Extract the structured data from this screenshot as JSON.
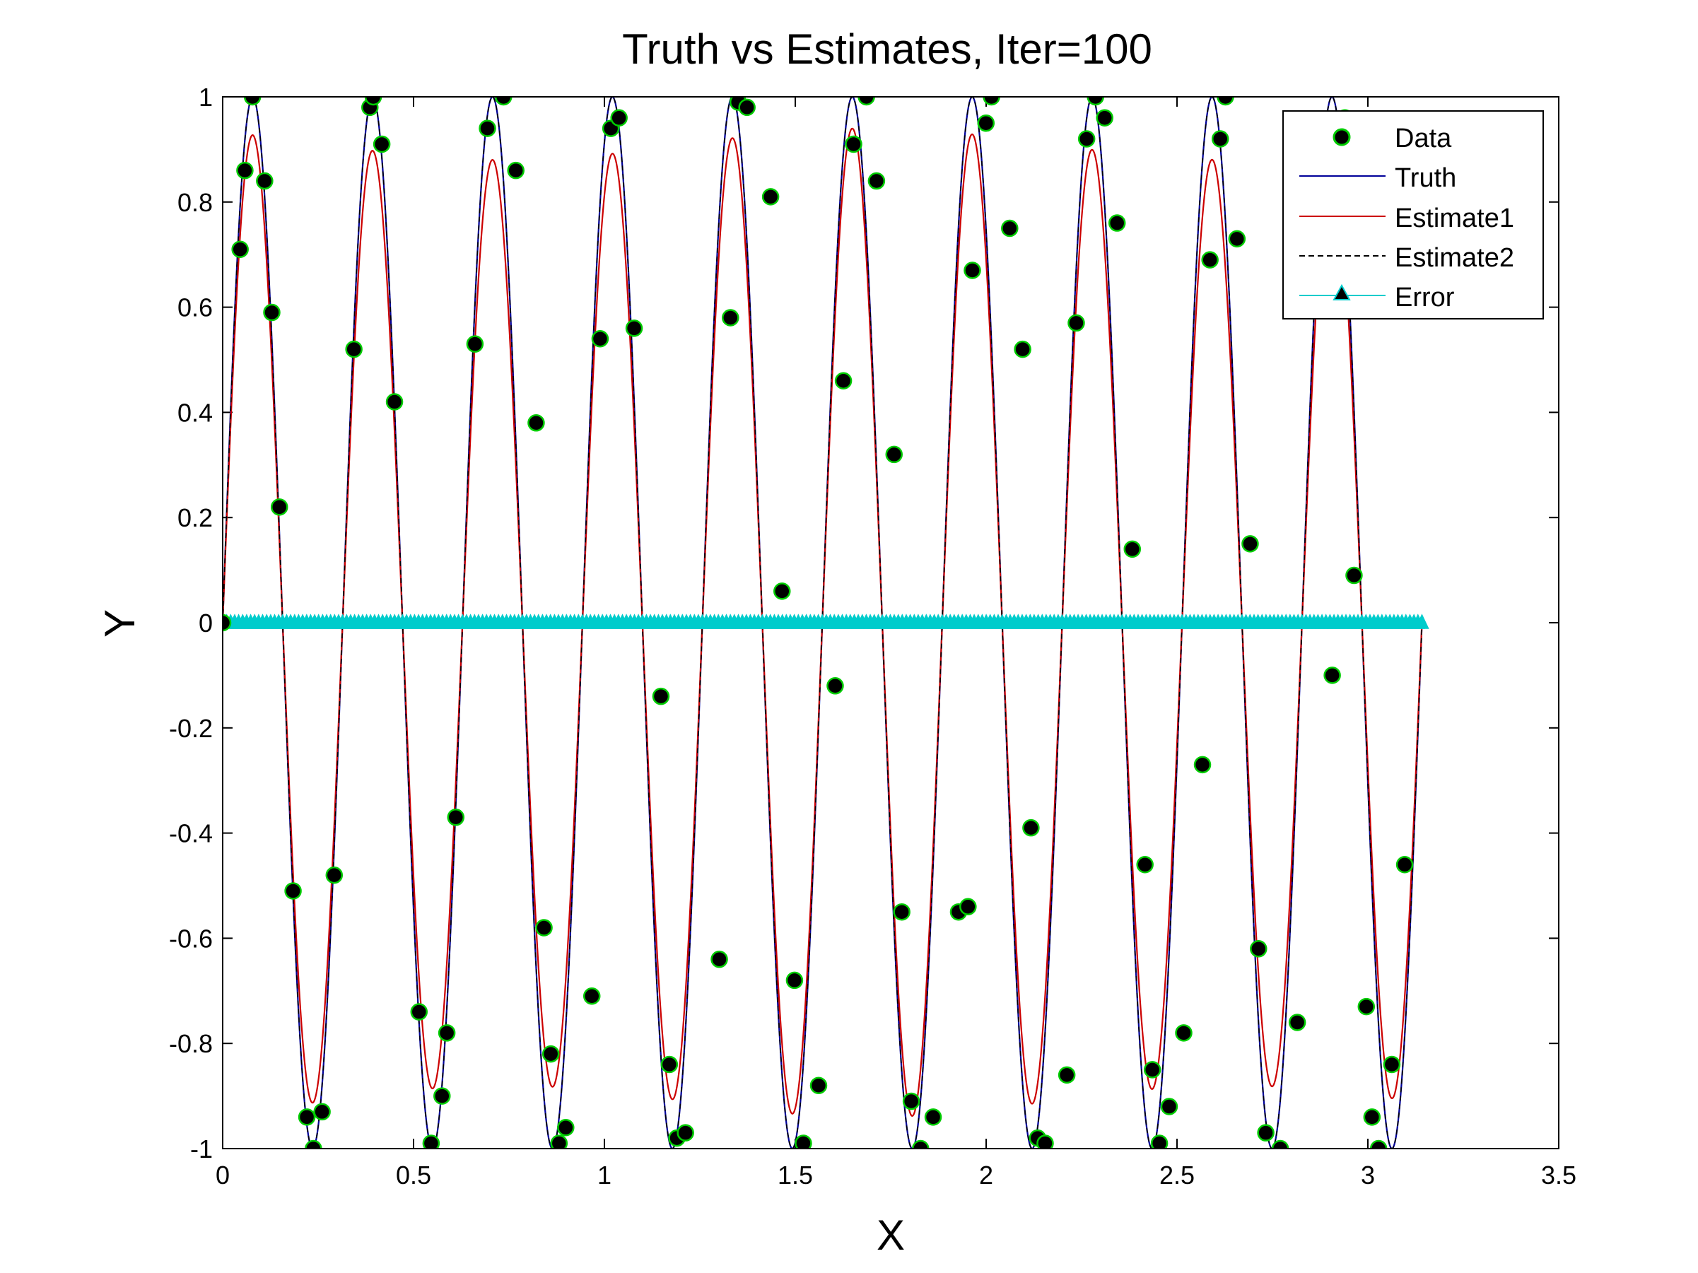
{
  "chart_data": {
    "type": "line",
    "title": "Truth vs Estimates, Iter=100",
    "xlabel": "X",
    "ylabel": "Y",
    "xlim": [
      0,
      3.5
    ],
    "ylim": [
      -1,
      1
    ],
    "xticks": [
      0,
      0.5,
      1,
      1.5,
      2,
      2.5,
      3,
      3.5
    ],
    "xtick_labels": [
      "0",
      "0.5",
      "1",
      "1.5",
      "2",
      "2.5",
      "3",
      "3.5"
    ],
    "yticks": [
      -1,
      -0.8,
      -0.6,
      -0.4,
      -0.2,
      0,
      0.2,
      0.4,
      0.6,
      0.8,
      1
    ],
    "ytick_labels": [
      "-1",
      "-0.8",
      "-0.6",
      "-0.4",
      "-0.2",
      "0",
      "0.2",
      "0.4",
      "0.6",
      "0.8",
      "1"
    ],
    "grid": false,
    "legend_position": "top-right",
    "series": [
      {
        "name": "Data",
        "style": "markers",
        "marker": "circle",
        "color": "#000000",
        "edge_color": "#00cc00",
        "x": [
          0.0,
          0.0457,
          0.0582,
          0.0781,
          0.1099,
          0.1287,
          0.1486,
          0.1844,
          0.2205,
          0.2377,
          0.2604,
          0.2922,
          0.3438,
          0.3857,
          0.3946,
          0.4169,
          0.4501,
          0.5144,
          0.5461,
          0.5746,
          0.5873,
          0.6107,
          0.6609,
          0.6936,
          0.7357,
          0.768,
          0.8212,
          0.8418,
          0.8596,
          0.8812,
          0.8987,
          0.9671,
          0.9888,
          1.0169,
          1.0383,
          1.0779,
          1.1481,
          1.1701,
          1.1899,
          1.2124,
          1.301,
          1.3302,
          1.3504,
          1.3735,
          1.4354,
          1.4653,
          1.498,
          1.5212,
          1.5611,
          1.6046,
          1.6261,
          1.6528,
          1.6863,
          1.7128,
          1.7588,
          1.779,
          1.8039,
          1.8283,
          1.8612,
          1.9277,
          1.9525,
          1.9639,
          1.9996,
          2.014,
          2.0617,
          2.0956,
          2.1174,
          2.1349,
          2.1546,
          2.2114,
          2.2361,
          2.2633,
          2.2865,
          2.3106,
          2.343,
          2.3829,
          2.4161,
          2.4355,
          2.4539,
          2.4796,
          2.5176,
          2.5667,
          2.5864,
          2.6134,
          2.6269,
          2.6571,
          2.6916,
          2.7135,
          2.7326,
          2.7706,
          2.8151,
          2.9067,
          2.9398,
          2.9638,
          2.9959,
          3.0108,
          3.0281,
          3.0628,
          3.0964
        ],
        "y": [
          0.0,
          0.71,
          0.86,
          1.0,
          0.84,
          0.59,
          0.22,
          -0.51,
          -0.94,
          -1.0,
          -0.93,
          -0.48,
          0.52,
          0.98,
          1.0,
          0.91,
          0.42,
          -0.74,
          -0.99,
          -0.9,
          -0.78,
          -0.37,
          0.53,
          0.94,
          1.0,
          0.86,
          0.38,
          -0.58,
          -0.82,
          -0.99,
          -0.96,
          -0.71,
          0.54,
          0.94,
          0.96,
          0.56,
          -0.14,
          -0.84,
          -0.98,
          -0.97,
          -0.64,
          0.58,
          0.99,
          0.98,
          0.81,
          0.06,
          -0.68,
          -0.99,
          -0.88,
          -0.12,
          0.46,
          0.91,
          1.0,
          0.84,
          0.32,
          -0.55,
          -0.91,
          -1.0,
          -0.94,
          -0.55,
          -0.54,
          0.67,
          0.95,
          1.0,
          0.75,
          0.52,
          -0.39,
          -0.98,
          -0.99,
          -0.86,
          0.57,
          0.92,
          1.0,
          0.96,
          0.76,
          0.14,
          -0.46,
          -0.85,
          -0.99,
          -0.92,
          -0.78,
          -0.27,
          0.69,
          0.92,
          1.0,
          0.73,
          0.15,
          -0.62,
          -0.97,
          -1.0,
          -0.76,
          -0.1,
          0.96,
          0.09,
          -0.73,
          -0.94,
          -1.0,
          -0.84,
          -0.46
        ]
      },
      {
        "name": "Truth",
        "style": "line",
        "color": "#000099",
        "function": "sin(20*x)",
        "x_range": [
          0,
          3.1416
        ]
      },
      {
        "name": "Estimate1",
        "style": "line",
        "color": "#cc0000",
        "function": "approx 0.93*sin(20*x)",
        "x_range": [
          0,
          3.1416
        ]
      },
      {
        "name": "Estimate2",
        "style": "dashed",
        "color": "#000000",
        "function": "sin(20*x)",
        "x_range": [
          0,
          3.1416
        ]
      },
      {
        "name": "Error",
        "style": "line+markers",
        "marker": "triangle",
        "color": "#00cccc",
        "marker_face": "#000000",
        "function": "0",
        "x_range": [
          0,
          3.1416
        ]
      }
    ]
  }
}
